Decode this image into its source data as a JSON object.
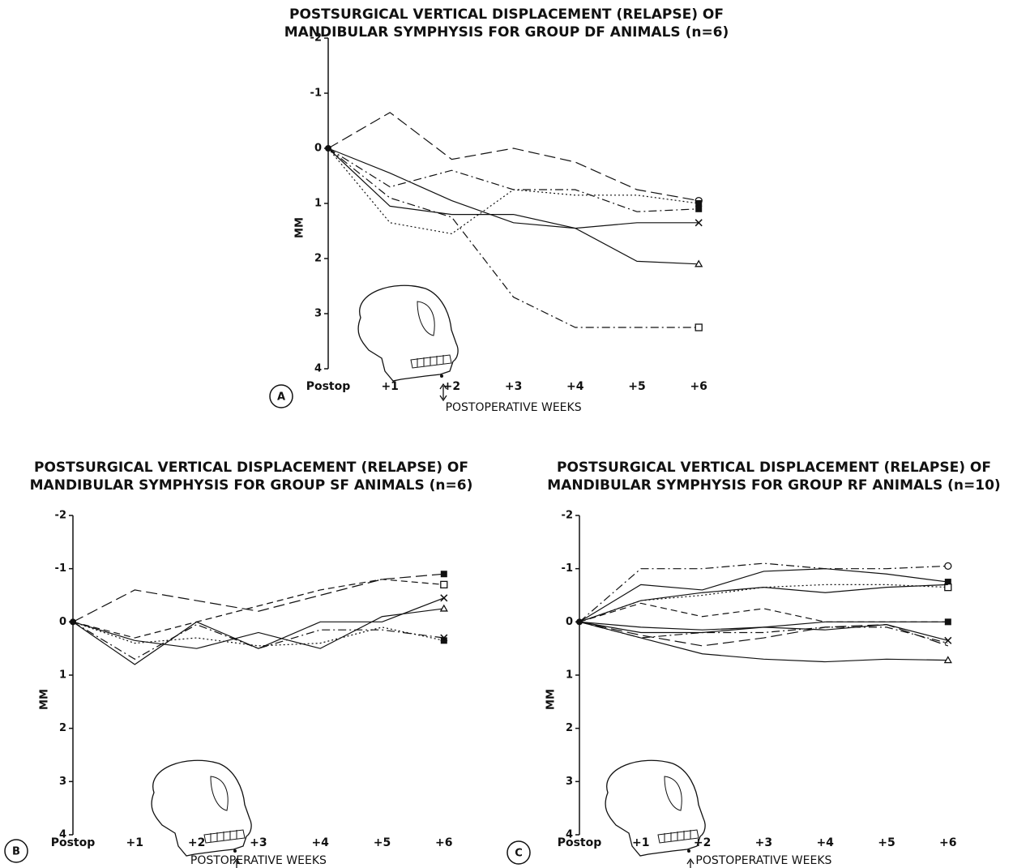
{
  "chart_data": [
    {
      "type": "line",
      "label": "A",
      "title": [
        "POSTSURGICAL VERTICAL DISPLACEMENT (RELAPSE) OF",
        "MANDIBULAR SYMPHYSIS FOR GROUP DF ANIMALS (n=6)"
      ],
      "ylabel": "MM",
      "xlabel": "POSTOPERATIVE WEEKS",
      "categories": [
        "Postop",
        "+1",
        "+2",
        "+3",
        "+4",
        "+5",
        "+6"
      ],
      "ylim": [
        -2,
        4
      ],
      "yticks": [
        -2,
        -1,
        0,
        1,
        2,
        3,
        4
      ],
      "y_inverted": true,
      "color": "#111111",
      "series": [
        {
          "dash": "long",
          "marker": "circle",
          "values": [
            0,
            -0.65,
            0.2,
            0,
            0.25,
            0.75,
            0.95
          ]
        },
        {
          "dash": "solid",
          "marker": "x",
          "values": [
            0,
            0.45,
            0.95,
            1.35,
            1.45,
            1.35,
            1.35
          ]
        },
        {
          "dash": "solid",
          "marker": "triangle",
          "values": [
            0,
            1.05,
            1.2,
            1.2,
            1.45,
            2.05,
            2.1
          ]
        },
        {
          "dash": "dashdot",
          "marker": "square",
          "values": [
            0,
            0.9,
            1.25,
            2.7,
            3.25,
            3.25,
            3.25
          ]
        },
        {
          "dash": "dotted",
          "marker": "filled",
          "values": [
            0,
            1.35,
            1.55,
            0.75,
            0.85,
            0.85,
            1.0
          ]
        },
        {
          "dash": "dashdot",
          "marker": "filled",
          "values": [
            0,
            0.7,
            0.4,
            0.75,
            0.75,
            1.15,
            1.1
          ]
        }
      ]
    },
    {
      "type": "line",
      "label": "B",
      "title": [
        "POSTSURGICAL VERTICAL DISPLACEMENT (RELAPSE) OF",
        "MANDIBULAR SYMPHYSIS FOR GROUP SF ANIMALS (n=6)"
      ],
      "ylabel": "MM",
      "xlabel": "POSTOPERATIVE WEEKS",
      "categories": [
        "Postop",
        "+1",
        "+2",
        "+3",
        "+4",
        "+5",
        "+6"
      ],
      "ylim": [
        -2,
        4
      ],
      "yticks": [
        -2,
        -1,
        0,
        1,
        2,
        3,
        4
      ],
      "y_inverted": true,
      "color": "#111111",
      "series": [
        {
          "dash": "long",
          "marker": "filled",
          "values": [
            0,
            -0.6,
            -0.4,
            -0.2,
            -0.5,
            -0.8,
            -0.9
          ]
        },
        {
          "dash": "dash",
          "marker": "square",
          "values": [
            0,
            0.3,
            0,
            -0.3,
            -0.6,
            -0.8,
            -0.7
          ]
        },
        {
          "dash": "solid",
          "marker": "x",
          "values": [
            0,
            0.8,
            0,
            0.5,
            0,
            0,
            -0.45
          ]
        },
        {
          "dash": "solid",
          "marker": "triangle",
          "values": [
            0,
            0.35,
            0.5,
            0.2,
            0.5,
            -0.1,
            -0.25
          ]
        },
        {
          "dash": "dotted",
          "marker": "filled",
          "values": [
            0,
            0.4,
            0.3,
            0.45,
            0.4,
            0.1,
            0.35
          ]
        },
        {
          "dash": "dashdot",
          "marker": "x",
          "values": [
            0,
            0.7,
            0.05,
            0.5,
            0.15,
            0.15,
            0.3
          ]
        }
      ]
    },
    {
      "type": "line",
      "label": "C",
      "title": [
        "POSTSURGICAL VERTICAL DISPLACEMENT (RELAPSE) OF",
        "MANDIBULAR SYMPHYSIS FOR GROUP RF ANIMALS (n=10)"
      ],
      "ylabel": "MM",
      "xlabel": "POSTOPERATIVE WEEKS",
      "categories": [
        "Postop",
        "+1",
        "+2",
        "+3",
        "+4",
        "+5",
        "+6"
      ],
      "ylim": [
        -2,
        4
      ],
      "yticks": [
        -2,
        -1,
        0,
        1,
        2,
        3,
        4
      ],
      "y_inverted": true,
      "color": "#111111",
      "series": [
        {
          "dash": "dashdot",
          "marker": "circle",
          "values": [
            0,
            -1,
            -1,
            -1.1,
            -1,
            -1,
            -1.05
          ]
        },
        {
          "dash": "solid",
          "marker": "filled",
          "values": [
            0,
            -0.7,
            -0.6,
            -0.95,
            -1,
            -0.9,
            -0.75
          ]
        },
        {
          "dash": "dotted",
          "marker": "square",
          "values": [
            0,
            -0.4,
            -0.5,
            -0.65,
            -0.7,
            -0.7,
            -0.65
          ]
        },
        {
          "dash": "solid",
          "marker": "none",
          "values": [
            0,
            -0.4,
            -0.55,
            -0.65,
            -0.55,
            -0.65,
            -0.7
          ]
        },
        {
          "dash": "dash",
          "marker": "none",
          "values": [
            0,
            -0.35,
            -0.1,
            -0.25,
            0,
            0,
            0
          ]
        },
        {
          "dash": "solid",
          "marker": "filled",
          "values": [
            0,
            0.1,
            0.15,
            0.1,
            0,
            0,
            0
          ]
        },
        {
          "dash": "solid",
          "marker": "x",
          "values": [
            0,
            0.2,
            0.2,
            0.1,
            0.15,
            0.05,
            0.35
          ]
        },
        {
          "dash": "dashdot",
          "marker": "none",
          "values": [
            0,
            0.3,
            0.2,
            0.2,
            0.1,
            0.1,
            0.4
          ]
        },
        {
          "dash": "long",
          "marker": "none",
          "values": [
            0,
            0.25,
            0.45,
            0.3,
            0.1,
            0.05,
            0.45
          ]
        },
        {
          "dash": "solid",
          "marker": "triangle",
          "values": [
            0,
            0.3,
            0.6,
            0.7,
            0.75,
            0.7,
            0.72
          ]
        }
      ]
    }
  ]
}
